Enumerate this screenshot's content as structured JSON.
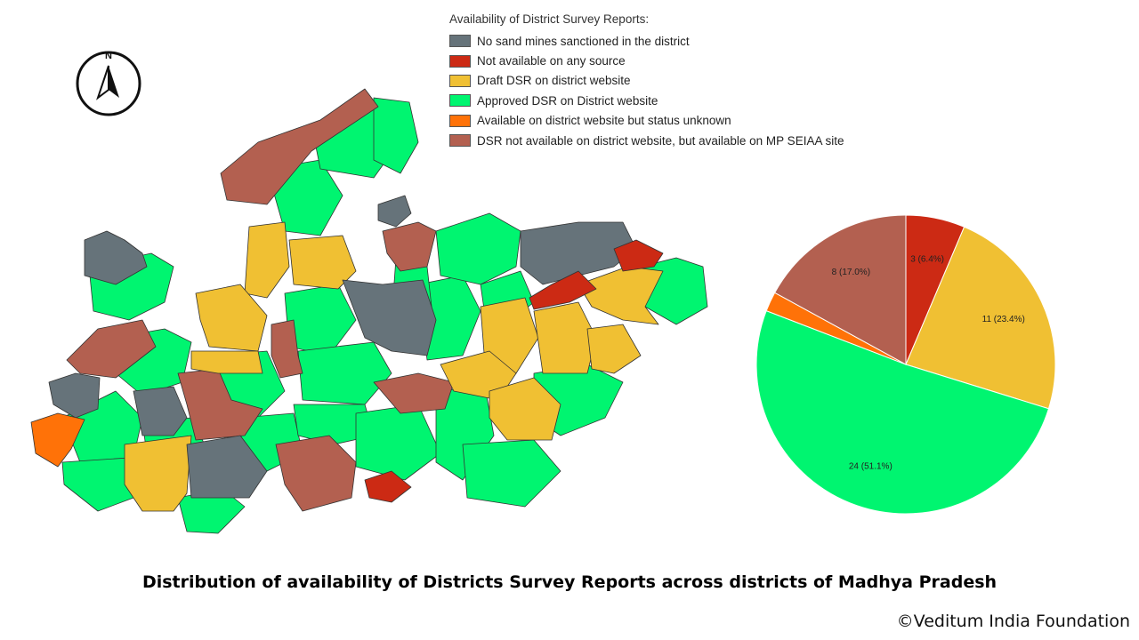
{
  "compass": {
    "label": "N"
  },
  "legend": {
    "title": "Availability of District Survey Reports:",
    "items": [
      {
        "label": "No sand mines sanctioned in the district",
        "color": "#66737a"
      },
      {
        "label": "Not available on any source",
        "color": "#cc2a14"
      },
      {
        "label": "Draft DSR on district website",
        "color": "#f0c033"
      },
      {
        "label": "Approved DSR on District website",
        "color": "#00f570"
      },
      {
        "label": "Available on district website but status unknown",
        "color": "#ff7208"
      },
      {
        "label": "DSR not available on district website, but available on MP SEIAA site",
        "color": "#b36050"
      }
    ]
  },
  "chart_data": {
    "type": "pie",
    "title": "Distribution of availability of Districts Survey Reports across districts of Madhya Pradesh",
    "slices": [
      {
        "label": "Not available on any source",
        "value": 3,
        "percent": 6.4,
        "display": "3 (6.4%)",
        "color": "#cc2a14"
      },
      {
        "label": "Draft DSR on district website",
        "value": 11,
        "percent": 23.4,
        "display": "11 (23.4%)",
        "color": "#f0c033"
      },
      {
        "label": "Approved DSR on District website",
        "value": 24,
        "percent": 51.1,
        "display": "24 (51.1%)",
        "color": "#00f570"
      },
      {
        "label": "Available on district website but status unknown",
        "value": 1,
        "percent": 2.1,
        "display": "",
        "color": "#ff7208"
      },
      {
        "label": "DSR not available on district website, but available on MP SEIAA site",
        "value": 8,
        "percent": 17.0,
        "display": "8 (17.0%)",
        "color": "#b36050"
      }
    ]
  },
  "footer": {
    "title": "Distribution of availability of Districts Survey Reports across districts of Madhya Pradesh",
    "credit": "©Veditum India Foundation"
  }
}
